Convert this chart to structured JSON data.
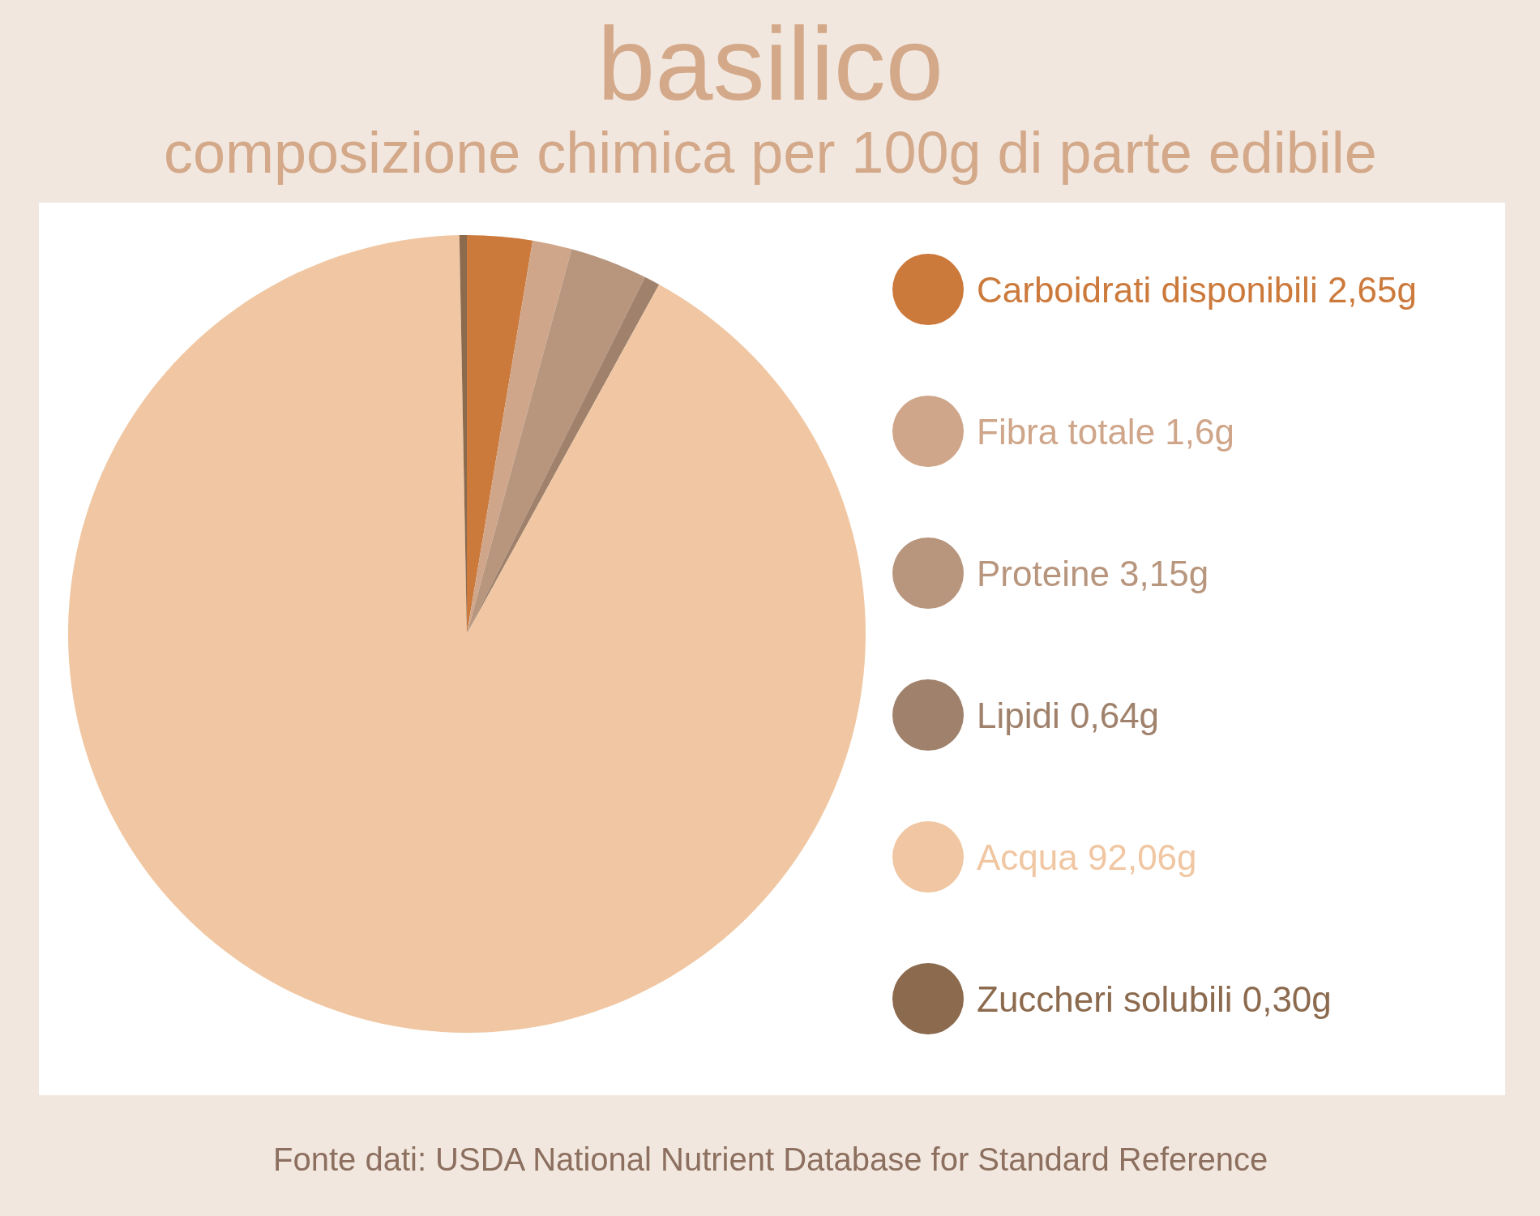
{
  "chart_data": {
    "type": "pie",
    "title": "basilico",
    "subtitle": "composizione chimica per 100g di parte edibile",
    "categories": [
      "Carboidrati disponibili",
      "Fibra totale",
      "Proteine",
      "Lipidi",
      "Acqua",
      "Zuccheri solubili"
    ],
    "values": [
      2.65,
      1.6,
      3.15,
      0.64,
      92.06,
      0.3
    ],
    "value_labels": [
      "2,65g",
      "1,6g",
      "3,15g",
      "0,64g",
      "92,06g",
      "0,30g"
    ],
    "colors": [
      "#cc7a3c",
      "#cfa68a",
      "#b8967e",
      "#a0826c",
      "#f0c7a2",
      "#8c6a4e"
    ],
    "legend": "right",
    "annotations": [
      "Fonte dati: USDA National Nutrient Database for Standard Reference"
    ]
  }
}
